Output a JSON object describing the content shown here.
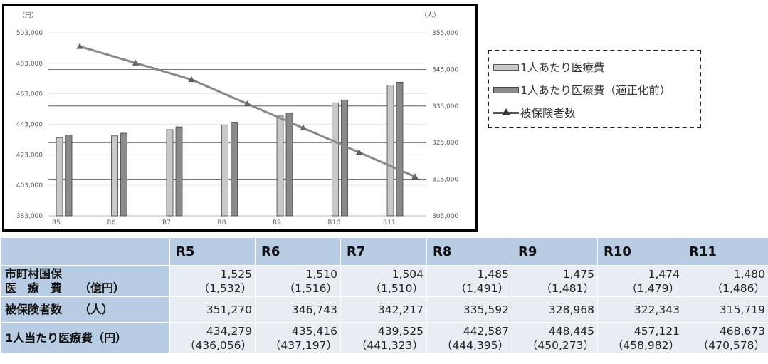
{
  "chart_data": {
    "type": "bar",
    "categories": [
      "R5",
      "R6",
      "R7",
      "R8",
      "R9",
      "R10",
      "R11"
    ],
    "series": [
      {
        "name": "1人あたり医療費",
        "kind": "bar",
        "axis": "left",
        "color": "#c8c8c8",
        "values": [
          434279,
          435416,
          439525,
          442587,
          448445,
          457121,
          468673
        ]
      },
      {
        "name": "1人あたり医療費（適正化前）",
        "kind": "bar",
        "axis": "left",
        "color": "#8a8a8a",
        "values": [
          436056,
          437197,
          441323,
          444395,
          450273,
          458982,
          470578
        ]
      },
      {
        "name": "被保険者数",
        "kind": "line",
        "axis": "right",
        "color": "#888888",
        "values": [
          351270,
          346743,
          342217,
          335592,
          328968,
          322343,
          315719
        ]
      }
    ],
    "left_axis": {
      "unit": "（円）",
      "ylim": [
        383000,
        503000
      ],
      "ticks": [
        "503,000",
        "483,000",
        "463,000",
        "443,000",
        "423,000",
        "403,000",
        "383,000"
      ]
    },
    "right_axis": {
      "unit": "（人）",
      "ylim": [
        305000,
        355000
      ],
      "ticks": [
        "355,000",
        "345,000",
        "335,000",
        "325,000",
        "315,000",
        "305,000"
      ]
    },
    "legend_position": "right",
    "grid": true
  },
  "legend": {
    "items": [
      {
        "label": "1人あたり医療費",
        "swatch": "light"
      },
      {
        "label": "1人あたり医療費（適正化前）",
        "swatch": "dark"
      },
      {
        "label": "被保険者数",
        "swatch": "line"
      }
    ]
  },
  "table": {
    "headers": [
      "R5",
      "R6",
      "R7",
      "R8",
      "R9",
      "R10",
      "R11"
    ],
    "rows": [
      {
        "label_line1": "市町村国保",
        "label_line2": "医　療　費　　（億円）",
        "values": [
          "1,525",
          "1,510",
          "1,504",
          "1,485",
          "1,475",
          "1,474",
          "1,480"
        ],
        "subvalues": [
          "（1,532）",
          "（1,516）",
          "（1,510）",
          "（1,491）",
          "（1,481）",
          "（1,479）",
          "（1,486）"
        ]
      },
      {
        "label_line1": "被保険者数　　（人）",
        "label_line2": "",
        "values": [
          "351,270",
          "346,743",
          "342,217",
          "335,592",
          "328,968",
          "322,343",
          "315,719"
        ],
        "subvalues": []
      },
      {
        "label_line1": "1人当たり医療費（円）",
        "label_line2": "",
        "values": [
          "434,279",
          "435,416",
          "439,525",
          "442,587",
          "448,445",
          "457,121",
          "468,673"
        ],
        "subvalues": [
          "（436,056）",
          "（437,197）",
          "（441,323）",
          "（444,395）",
          "（450,273）",
          "（458,982）",
          "（470,578）"
        ]
      }
    ]
  }
}
